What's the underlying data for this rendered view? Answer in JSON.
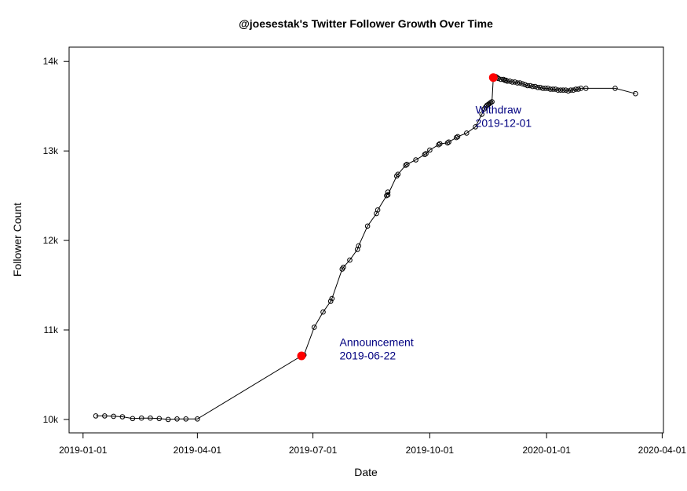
{
  "chart_data": {
    "type": "scatter",
    "title": "@joesestak's Twitter Follower Growth Over Time",
    "xlabel": "Date",
    "ylabel": "Follower Count",
    "x_type": "date",
    "xlim": [
      "2018-12-21",
      "2020-04-02"
    ],
    "ylim": [
      9850,
      14160
    ],
    "x_ticks": [
      "2019-01-01",
      "2019-04-01",
      "2019-07-01",
      "2019-10-01",
      "2020-01-01",
      "2020-04-01"
    ],
    "x_tick_labels": [
      "2019-01-01",
      "2019-04-01",
      "2019-07-01",
      "2019-10-01",
      "2020-01-01",
      "2020-04-01"
    ],
    "y_ticks": [
      10000,
      11000,
      12000,
      13000,
      14000
    ],
    "y_tick_labels": [
      "10k",
      "11k",
      "12k",
      "13k",
      "14k"
    ],
    "grid": false,
    "point_style": "open-circle",
    "line_color": "#000000",
    "highlight_color": "#ff0000",
    "annotation_color": "#000080",
    "series": [
      {
        "x": [
          "2019-01-11",
          "2019-01-18",
          "2019-01-25",
          "2019-02-01",
          "2019-02-09",
          "2019-02-16",
          "2019-02-23",
          "2019-03-02",
          "2019-03-09",
          "2019-03-16",
          "2019-03-23",
          "2019-04-01",
          "2019-06-22",
          "2019-06-24",
          "2019-07-02",
          "2019-07-09",
          "2019-07-15",
          "2019-07-16",
          "2019-07-24",
          "2019-07-25",
          "2019-07-30",
          "2019-08-05",
          "2019-08-06",
          "2019-08-13",
          "2019-08-20",
          "2019-08-21",
          "2019-08-28",
          "2019-08-29",
          "2019-08-29",
          "2019-09-05",
          "2019-09-06",
          "2019-09-12",
          "2019-09-13",
          "2019-09-20",
          "2019-09-27",
          "2019-09-28",
          "2019-10-01",
          "2019-10-08",
          "2019-10-09",
          "2019-10-15",
          "2019-10-16",
          "2019-10-22",
          "2019-10-23",
          "2019-10-30",
          "2019-11-06",
          "2019-11-11",
          "2019-11-13",
          "2019-11-14",
          "2019-11-15",
          "2019-11-16",
          "2019-11-17",
          "2019-11-18",
          "2019-11-19",
          "2019-11-20",
          "2019-11-21",
          "2019-11-22",
          "2019-11-23",
          "2019-11-24",
          "2019-11-26",
          "2019-11-28",
          "2019-11-29",
          "2019-11-30",
          "2019-12-01",
          "2019-12-03",
          "2019-12-05",
          "2019-12-07",
          "2019-12-09",
          "2019-12-11",
          "2019-12-13",
          "2019-12-15",
          "2019-12-17",
          "2019-12-19",
          "2019-12-21",
          "2019-12-23",
          "2019-12-25",
          "2019-12-27",
          "2019-12-29",
          "2019-12-31",
          "2020-01-02",
          "2020-01-04",
          "2020-01-06",
          "2020-01-08",
          "2020-01-10",
          "2020-01-12",
          "2020-01-14",
          "2020-01-16",
          "2020-01-18",
          "2020-01-20",
          "2020-01-22",
          "2020-01-24",
          "2020-01-26",
          "2020-01-28",
          "2020-02-01",
          "2020-02-24",
          "2020-03-11"
        ],
        "y": [
          10040,
          10040,
          10035,
          10030,
          10010,
          10015,
          10015,
          10010,
          10000,
          10005,
          10005,
          10005,
          10710,
          10720,
          11030,
          11200,
          11320,
          11350,
          11680,
          11700,
          11780,
          11900,
          11940,
          12160,
          12300,
          12340,
          12500,
          12540,
          12510,
          12720,
          12740,
          12840,
          12850,
          12900,
          12960,
          12970,
          13010,
          13070,
          13080,
          13090,
          13100,
          13150,
          13160,
          13200,
          13270,
          13410,
          13470,
          13490,
          13510,
          13520,
          13530,
          13540,
          13550,
          13820,
          13830,
          13830,
          13820,
          13810,
          13800,
          13800,
          13790,
          13790,
          13780,
          13780,
          13770,
          13770,
          13760,
          13760,
          13750,
          13740,
          13730,
          13730,
          13720,
          13720,
          13710,
          13710,
          13700,
          13700,
          13700,
          13690,
          13690,
          13690,
          13680,
          13680,
          13680,
          13680,
          13670,
          13680,
          13680,
          13690,
          13690,
          13700,
          13700,
          13700,
          13640
        ]
      }
    ],
    "highlights": [
      {
        "x": "2019-06-22",
        "y": 10710
      },
      {
        "x": "2019-11-20",
        "y": 13820
      }
    ],
    "annotations": [
      {
        "line1": "Announcement",
        "line2": "2019-06-22",
        "x": "2019-07-22",
        "y1": 10820,
        "y2": 10670
      },
      {
        "line1": "Withdraw",
        "line2": "2019-12-01",
        "x": "2019-11-06",
        "y1": 13420,
        "y2": 13270
      }
    ]
  }
}
